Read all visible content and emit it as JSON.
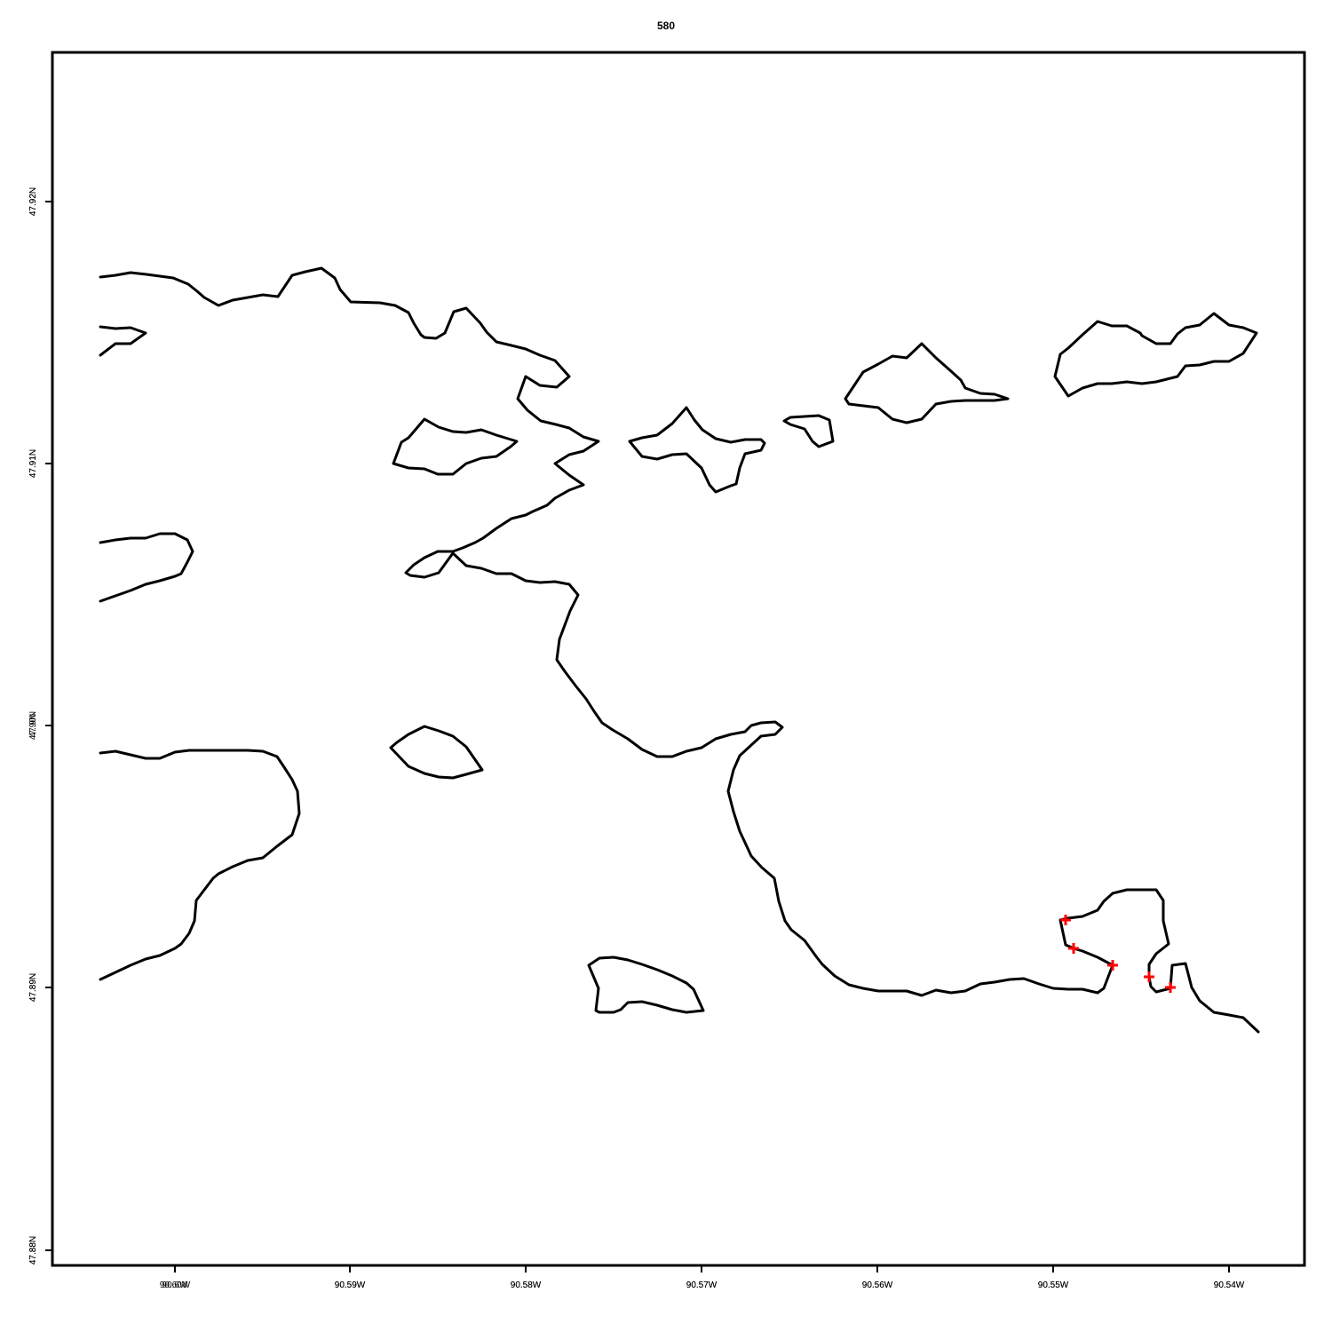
{
  "title": "580",
  "x_tick_labels": [
    "90.6W",
    "90.59W",
    "90.58W",
    "90.57W",
    "90.56W",
    "90.55W",
    "90.54W"
  ],
  "x_tick_overprint": [
    "90.60W",
    "90.59W",
    "90.58W",
    "90.57W",
    "90.56W",
    "90.55W",
    "90.54W"
  ],
  "y_tick_labels": [
    "47.92N",
    "47.91N",
    "47.9N",
    "47.89N",
    "47.88N"
  ],
  "y_tick_overprint": [
    "47.92N",
    "47.91N",
    "47.90N",
    "47.89N",
    "47.88N"
  ],
  "colors": {
    "coastline": "#000000",
    "marker": "#ff0000",
    "frame": "#000000"
  },
  "marker_symbol": "cross"
}
